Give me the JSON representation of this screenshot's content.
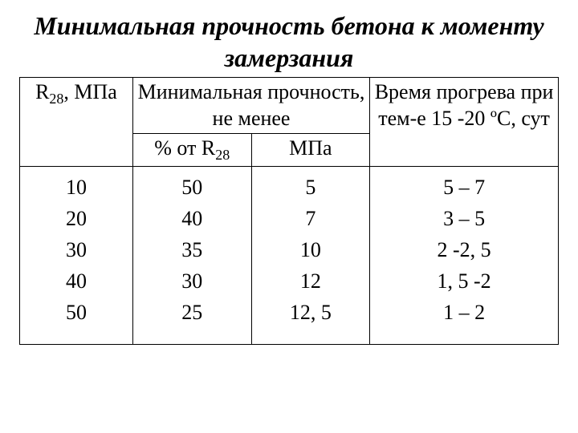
{
  "title": "Минимальная прочность бетона к моменту замерзания",
  "headers": {
    "r28": "R28, МПа",
    "min_strength": "Минимальная прочность, не менее",
    "pct": "% от R28",
    "mpa": "МПа",
    "time": "Время прогрева при тем-е 15 -20 ºС, сут"
  },
  "rows": [
    {
      "r28": "10",
      "pct": "50",
      "mpa": "5",
      "time": "5 – 7"
    },
    {
      "r28": "20",
      "pct": "40",
      "mpa": "7",
      "time": "3 – 5"
    },
    {
      "r28": "30",
      "pct": "35",
      "mpa": "10",
      "time": "2 -2, 5"
    },
    {
      "r28": "40",
      "pct": "30",
      "mpa": "12",
      "time": "1, 5 -2"
    },
    {
      "r28": "50",
      "pct": "25",
      "mpa": "12, 5",
      "time": "1 – 2"
    }
  ],
  "colors": {
    "background": "#ffffff",
    "text": "#000000",
    "border": "#000000"
  },
  "font": {
    "family": "Times New Roman",
    "title_size_pt": 24,
    "cell_size_pt": 20
  }
}
